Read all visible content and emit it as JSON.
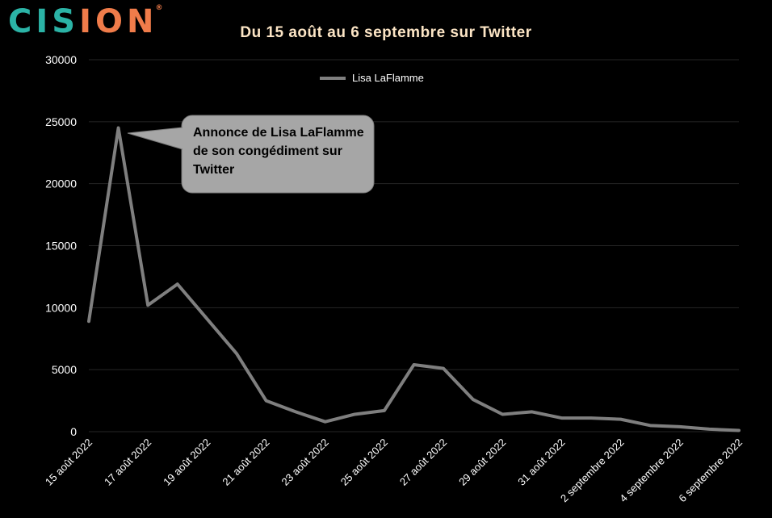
{
  "brand": {
    "logo_text": "CISION",
    "logo_mark": "®"
  },
  "colors": {
    "background": "#000000",
    "logo_teal": "#2bb3a6",
    "logo_orange": "#f07c4a",
    "title": "#fce5c5",
    "line": "#7f7f7f",
    "grid": "#262626",
    "callout_fill": "#a6a6a6",
    "text": "#ffffff"
  },
  "chart_data": {
    "type": "line",
    "title": "Du 15 août au 6 septembre sur Twitter",
    "x": [
      "15 août 2022",
      "16 août 2022",
      "17 août 2022",
      "18 août 2022",
      "19 août 2022",
      "20 août 2022",
      "21 août 2022",
      "22 août 2022",
      "23 août 2022",
      "24 août 2022",
      "25 août 2022",
      "26 août 2022",
      "27 août 2022",
      "28 août 2022",
      "29 août 2022",
      "30 août 2022",
      "31 août 2022",
      "1 septembre 2022",
      "2 septembre 2022",
      "3 septembre 2022",
      "4 septembre 2022",
      "5 septembre 2022",
      "6 septembre 2022"
    ],
    "tick_labels": [
      "15 août 2022",
      "17 août 2022",
      "19 août 2022",
      "21 août 2022",
      "23 août 2022",
      "25 août 2022",
      "27 août 2022",
      "29 août 2022",
      "31 août 2022",
      "2 septembre 2022",
      "4 septembre 2022",
      "6 septembre 2022"
    ],
    "series": [
      {
        "name": "Lisa LaFlamme",
        "values": [
          8900,
          24500,
          10200,
          11900,
          9100,
          6300,
          2500,
          1600,
          800,
          1400,
          1700,
          5400,
          5100,
          2600,
          1400,
          1600,
          1100,
          1100,
          1000,
          500,
          400,
          200,
          100
        ]
      }
    ],
    "ylim": [
      0,
      30000
    ],
    "y_ticks": [
      "0",
      "5000",
      "10000",
      "15000",
      "20000",
      "25000",
      "30000"
    ],
    "grid": true,
    "legend_position": "top",
    "annotation": {
      "text": "Annonce de Lisa LaFlamme de son congédiment sur Twitter",
      "x_index": 1
    }
  }
}
